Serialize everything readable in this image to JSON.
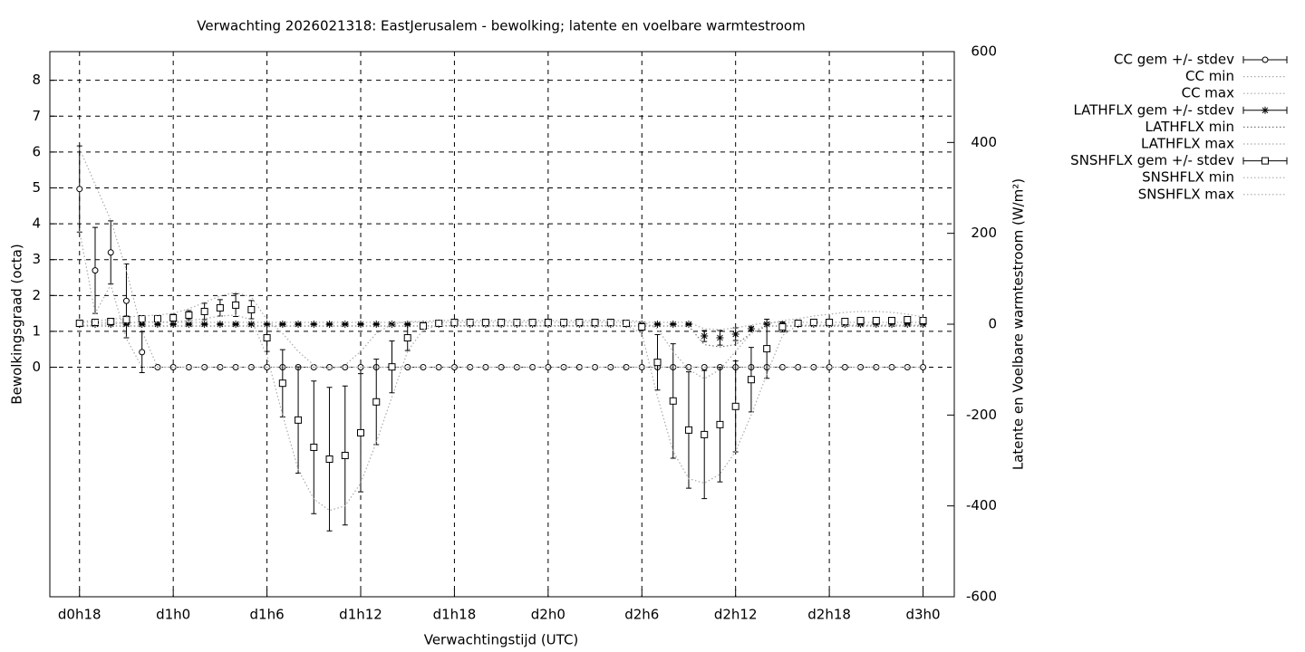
{
  "chart_data": {
    "type": "errorbar",
    "title": "Verwachting 2026021318: EastJerusalem - bewolking; latente en voelbare warmtestroom",
    "xlabel": "Verwachtingstijd (UTC)",
    "ylabel": "Bewolkingsgraad (octa)",
    "y2label": "Latente en Voelbare warmtestroom (W/m²)",
    "grid": true,
    "legend": "outside-top-right",
    "xlim": [
      16.1,
      74
    ],
    "xticks": [
      {
        "value": 18,
        "label": "d0h18"
      },
      {
        "value": 24,
        "label": "d1h0"
      },
      {
        "value": 30,
        "label": "d1h6"
      },
      {
        "value": 36,
        "label": "d1h12"
      },
      {
        "value": 42,
        "label": "d1h18"
      },
      {
        "value": 48,
        "label": "d2h0"
      },
      {
        "value": 54,
        "label": "d2h6"
      },
      {
        "value": 60,
        "label": "d2h12"
      },
      {
        "value": 66,
        "label": "d2h18"
      },
      {
        "value": 72,
        "label": "d3h0"
      }
    ],
    "ylim": [
      -6.4,
      8.8
    ],
    "yticks": [
      0,
      1,
      2,
      3,
      4,
      5,
      6,
      7,
      8
    ],
    "y2lim": [
      -600,
      600
    ],
    "y2ticks": [
      -600,
      -400,
      -200,
      0,
      200,
      400,
      600
    ],
    "x": [
      18,
      19,
      20,
      21,
      22,
      23,
      24,
      25,
      26,
      27,
      28,
      29,
      30,
      31,
      32,
      33,
      34,
      35,
      36,
      37,
      38,
      39,
      40,
      41,
      42,
      43,
      44,
      45,
      46,
      47,
      48,
      49,
      50,
      51,
      52,
      53,
      54,
      55,
      56,
      57,
      58,
      59,
      60,
      61,
      62,
      63,
      64,
      65,
      66,
      67,
      68,
      69,
      70,
      71,
      72
    ],
    "series": [
      {
        "name": "CC gem +/- stdev",
        "axis": "y",
        "color": "#000000",
        "marker": "circle",
        "values": [
          4.97,
          2.7,
          3.2,
          1.85,
          0.42,
          0,
          0,
          0,
          0,
          0,
          0,
          0,
          0,
          0,
          0,
          0,
          0,
          0,
          0,
          0,
          0,
          0,
          0,
          0,
          0,
          0,
          0,
          0,
          0,
          0,
          0,
          0,
          0,
          0,
          0,
          0,
          0,
          0,
          0,
          0,
          0,
          0,
          0,
          0,
          0,
          0,
          0,
          0,
          0,
          0,
          0,
          0,
          0,
          0,
          0
        ],
        "errors": [
          1.2,
          1.2,
          0.88,
          1.03,
          0.57,
          0,
          0,
          0,
          0,
          0,
          0,
          0,
          0,
          0,
          0,
          0,
          0,
          0,
          0,
          0,
          0,
          0,
          0,
          0,
          0,
          0,
          0,
          0,
          0,
          0,
          0,
          0,
          0,
          0,
          0,
          0,
          0,
          0,
          0,
          0,
          0,
          0,
          0,
          0,
          0,
          0,
          0,
          0,
          0,
          0,
          0,
          0,
          0,
          0,
          0
        ]
      },
      {
        "name": "CC min",
        "axis": "y",
        "color": "#aaaaaa",
        "values": [
          3.8,
          1.5,
          2.3,
          0.8,
          0,
          0,
          0,
          0,
          0,
          0,
          0,
          0,
          0,
          0,
          0,
          0,
          0,
          0,
          0,
          0,
          0,
          0,
          0,
          0,
          0,
          0,
          0,
          0,
          0,
          0,
          0,
          0,
          0,
          0,
          0,
          0,
          0,
          0,
          0,
          0,
          0,
          0,
          0,
          0,
          0,
          0,
          0,
          0,
          0,
          0,
          0,
          0,
          0,
          0,
          0
        ]
      },
      {
        "name": "CC max",
        "axis": "y",
        "color": "#aaaaaa",
        "values": [
          6.1,
          5.1,
          4.1,
          2.7,
          1.0,
          0,
          0,
          0,
          0,
          0,
          0,
          0,
          0,
          0,
          0,
          0,
          0,
          0,
          0,
          0,
          0,
          0,
          0,
          0,
          0,
          0,
          0,
          0,
          0,
          0,
          0,
          0,
          0,
          0,
          0,
          0,
          0,
          0,
          0,
          0,
          0,
          0,
          0,
          0,
          0,
          0,
          0,
          0,
          0,
          0,
          0,
          0,
          0,
          0,
          0
        ]
      },
      {
        "name": "LATHFLX gem +/- stdev",
        "axis": "y2",
        "color": "#000000",
        "marker": "star",
        "values": [
          0,
          0,
          0,
          0,
          0,
          0,
          0,
          0,
          0,
          0,
          0,
          0,
          0,
          0,
          0,
          0,
          0,
          0,
          0,
          0,
          0,
          0,
          0,
          0,
          0,
          0,
          0,
          0,
          0,
          0,
          0,
          0,
          0,
          0,
          0,
          0,
          0,
          0,
          0,
          0,
          -26,
          -30,
          -22,
          -10,
          0,
          0,
          0,
          0,
          0,
          0,
          0,
          0,
          0,
          0,
          0
        ],
        "errors": [
          2,
          2,
          2,
          2,
          2,
          2,
          2,
          2,
          2,
          2,
          2,
          2,
          2,
          2,
          2,
          2,
          2,
          2,
          2,
          2,
          2,
          2,
          2,
          2,
          2,
          2,
          2,
          2,
          2,
          2,
          2,
          2,
          2,
          2,
          2,
          2,
          2,
          2,
          2,
          2,
          12,
          16,
          14,
          4,
          2,
          2,
          2,
          2,
          2,
          2,
          2,
          2,
          2,
          2,
          2
        ]
      },
      {
        "name": "LATHFLX min",
        "axis": "y2",
        "color": "#777777",
        "values": [
          -4,
          -4,
          -4,
          -4,
          -4,
          -4,
          -4,
          -4,
          -4,
          -4,
          -4,
          -4,
          -4,
          -4,
          -4,
          -4,
          -4,
          -4,
          -4,
          -4,
          -4,
          -4,
          -4,
          -4,
          -4,
          -4,
          -4,
          -4,
          -4,
          -4,
          -4,
          -4,
          -4,
          -4,
          -4,
          -4,
          -4,
          -4,
          -4,
          -4,
          -45,
          -50,
          -45,
          -20,
          -4,
          -4,
          -4,
          -4,
          -4,
          -4,
          -4,
          -4,
          -4,
          -4,
          -4
        ]
      },
      {
        "name": "LATHFLX max",
        "axis": "y2",
        "color": "#aaaaaa",
        "values": [
          4,
          4,
          4,
          4,
          4,
          4,
          4,
          4,
          4,
          4,
          4,
          4,
          4,
          4,
          4,
          4,
          4,
          4,
          4,
          4,
          4,
          4,
          4,
          4,
          4,
          4,
          4,
          4,
          4,
          4,
          4,
          4,
          4,
          4,
          4,
          4,
          4,
          4,
          4,
          4,
          -10,
          -12,
          -8,
          -2,
          4,
          4,
          4,
          4,
          4,
          4,
          4,
          4,
          4,
          4,
          4
        ]
      },
      {
        "name": "SNSHFLX gem +/- stdev",
        "axis": "y2",
        "color": "#000000",
        "marker": "square",
        "values": [
          2,
          4,
          6,
          10,
          12,
          12,
          14,
          20,
          28,
          36,
          42,
          32,
          -30,
          -130,
          -211,
          -271,
          -297,
          -289,
          -239,
          -171,
          -94,
          -30,
          -4,
          2,
          4,
          4,
          4,
          4,
          4,
          4,
          4,
          4,
          4,
          4,
          4,
          2,
          -6,
          -84,
          -169,
          -233,
          -243,
          -221,
          -181,
          -122,
          -54,
          -6,
          2,
          4,
          4,
          6,
          8,
          8,
          8,
          10,
          8
        ],
        "errors": [
          4,
          4,
          4,
          8,
          5,
          5,
          8,
          10,
          18,
          18,
          25,
          20,
          30,
          74,
          117,
          146,
          158,
          153,
          130,
          94,
          57,
          28,
          6,
          4,
          4,
          4,
          4,
          4,
          4,
          4,
          4,
          4,
          4,
          4,
          4,
          4,
          5,
          61,
          126,
          128,
          141,
          126,
          100,
          71,
          65,
          11,
          4,
          4,
          4,
          4,
          4,
          4,
          4,
          4,
          4
        ]
      },
      {
        "name": "SNSHFLX min",
        "axis": "y2",
        "color": "#aaaaaa",
        "values": [
          -3,
          -1,
          1,
          2,
          5,
          5,
          5,
          8,
          12,
          18,
          20,
          10,
          -70,
          -200,
          -320,
          -385,
          -410,
          -400,
          -350,
          -260,
          -160,
          -60,
          -12,
          -3,
          -3,
          -3,
          -3,
          -3,
          -3,
          -3,
          -3,
          -3,
          -3,
          -3,
          -3,
          -3,
          -20,
          -160,
          -280,
          -340,
          -350,
          -330,
          -280,
          -200,
          -110,
          -25,
          -2,
          -2,
          -2,
          -2,
          -2,
          -2,
          -2,
          -2,
          -2
        ]
      },
      {
        "name": "SNSHFLX max",
        "axis": "y2",
        "color": "#aaaaaa",
        "values": [
          6,
          8,
          10,
          16,
          18,
          20,
          24,
          34,
          48,
          62,
          70,
          60,
          10,
          -20,
          -60,
          -90,
          -100,
          -90,
          -60,
          -20,
          0,
          6,
          6,
          8,
          8,
          8,
          8,
          8,
          8,
          8,
          8,
          8,
          8,
          8,
          8,
          8,
          6,
          -10,
          -60,
          -100,
          -120,
          -100,
          -60,
          -20,
          0,
          8,
          12,
          18,
          22,
          26,
          28,
          28,
          26,
          22,
          16
        ]
      }
    ]
  }
}
